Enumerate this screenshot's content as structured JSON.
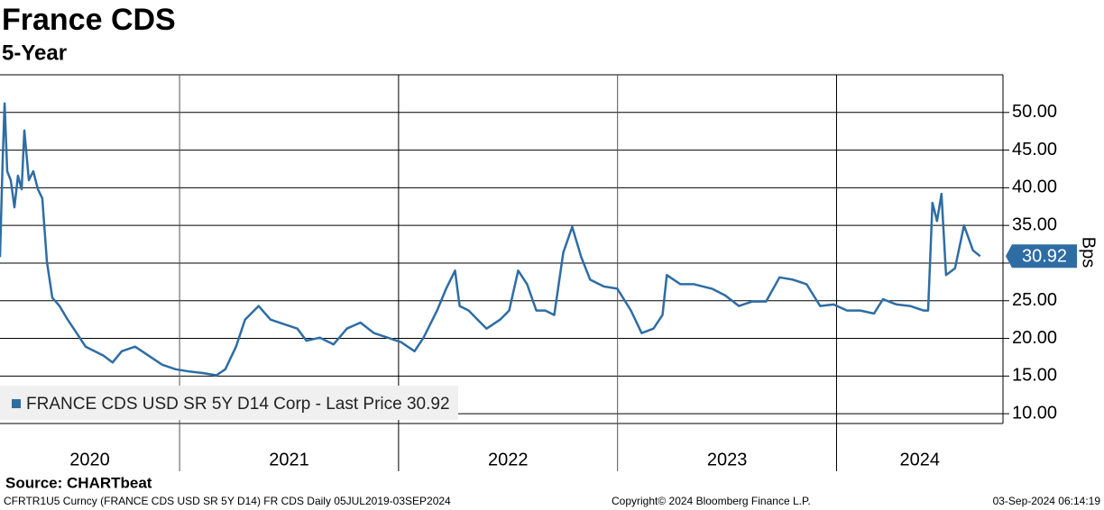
{
  "chart_data": {
    "type": "line",
    "title": "France CDS",
    "subtitle": "5-Year",
    "y_axis_label": "Bps",
    "source": "Source: CHARTbeat",
    "footer_left": "CFRTR1U5 Curncy (FRANCE CDS USD SR 5Y D14) FR CDS  Daily 05JUL2019-03SEP2024",
    "footer_center": "Copyright© 2024 Bloomberg Finance L.P.",
    "footer_right": "03-Sep-2024 06:14:19",
    "year_labels": [
      "2020",
      "2021",
      "2022",
      "2023",
      "2024"
    ],
    "xlim": [
      2020.18,
      2024.76
    ],
    "xticks": [
      2021,
      2022,
      2023,
      2024
    ],
    "ylim": [
      8.7,
      55
    ],
    "yticks": [
      {
        "value": 10,
        "label": "10.00"
      },
      {
        "value": 15,
        "label": "15.00"
      },
      {
        "value": 20,
        "label": "20.00"
      },
      {
        "value": 25,
        "label": "25.00"
      },
      {
        "value": 30,
        "label": "30.00"
      },
      {
        "value": 35,
        "label": "35.00"
      },
      {
        "value": 40,
        "label": "40.00"
      },
      {
        "value": 45,
        "label": "45.00"
      },
      {
        "value": 50,
        "label": "50.00"
      }
    ],
    "grid": true,
    "x": [
      2020.18,
      2020.192,
      2020.201,
      2020.213,
      2020.229,
      2020.246,
      2020.262,
      2020.279,
      2020.291,
      2020.312,
      2020.332,
      2020.353,
      2020.373,
      2020.394,
      2020.419,
      2020.452,
      2020.489,
      2020.53,
      2020.571,
      2020.612,
      2020.653,
      2020.694,
      2020.736,
      2020.797,
      2020.859,
      2020.921,
      2020.982,
      2021.044,
      2021.106,
      2021.168,
      2021.209,
      2021.258,
      2021.299,
      2021.361,
      2021.415,
      2021.476,
      2021.538,
      2021.579,
      2021.641,
      2021.703,
      2021.764,
      2021.826,
      2021.888,
      2021.95,
      2022.011,
      2022.073,
      2022.114,
      2022.176,
      2022.217,
      2022.258,
      2022.279,
      2022.32,
      2022.361,
      2022.402,
      2022.464,
      2022.505,
      2022.546,
      2022.587,
      2022.629,
      2022.67,
      2022.711,
      2022.752,
      2022.793,
      2022.834,
      2022.875,
      2022.937,
      2022.999,
      2023.061,
      2023.11,
      2023.164,
      2023.205,
      2023.225,
      2023.287,
      2023.349,
      2023.431,
      2023.492,
      2023.554,
      2023.616,
      2023.678,
      2023.74,
      2023.801,
      2023.863,
      2023.925,
      2023.986,
      2024.048,
      2024.109,
      2024.171,
      2024.212,
      2024.274,
      2024.336,
      2024.397,
      2024.418,
      2024.438,
      2024.459,
      2024.479,
      2024.5,
      2024.541,
      2024.582,
      2024.623,
      2024.656
    ],
    "series": [
      {
        "name": "FRANCE CDS USD SR 5Y D14 Corp - Last Price 30.92",
        "color": "#2e6da4",
        "values": [
          30.8,
          43.4,
          51.2,
          42.2,
          41.0,
          37.4,
          41.6,
          39.8,
          47.6,
          41.0,
          42.2,
          39.8,
          38.6,
          30.2,
          25.4,
          24.3,
          22.5,
          20.7,
          18.9,
          18.3,
          17.7,
          16.8,
          18.3,
          18.9,
          17.7,
          16.5,
          15.9,
          15.6,
          15.4,
          15.1,
          15.9,
          18.9,
          22.5,
          24.3,
          22.5,
          21.9,
          21.3,
          19.7,
          20.1,
          19.2,
          21.3,
          22.1,
          20.7,
          20.1,
          19.5,
          18.3,
          20.1,
          23.7,
          26.6,
          29.0,
          24.3,
          23.7,
          22.5,
          21.3,
          22.5,
          23.7,
          29.0,
          27.2,
          23.7,
          23.7,
          23.1,
          31.4,
          34.8,
          30.8,
          27.8,
          26.9,
          26.6,
          23.7,
          20.7,
          21.3,
          23.1,
          28.4,
          27.2,
          27.2,
          26.6,
          25.7,
          24.3,
          24.9,
          24.9,
          28.1,
          27.8,
          27.2,
          24.3,
          24.5,
          23.7,
          23.7,
          23.3,
          25.2,
          24.5,
          24.3,
          23.7,
          23.7,
          38.0,
          35.6,
          39.2,
          28.4,
          29.3,
          35.0,
          31.7,
          30.92
        ]
      }
    ]
  }
}
